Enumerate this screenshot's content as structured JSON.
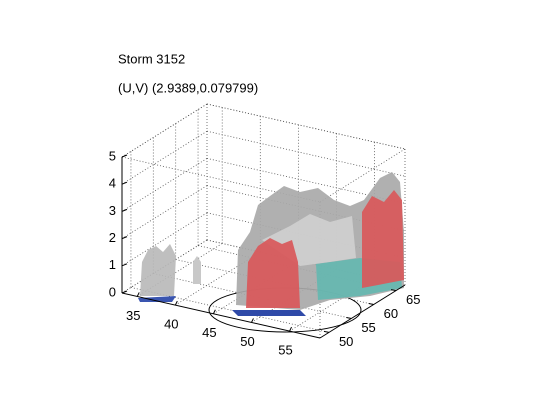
{
  "chart_data": {
    "type": "isosurface3d",
    "title": "Storm 3152",
    "subtitle": "(U,V) (2.9389,0.079799)",
    "xlim": [
      33,
      59
    ],
    "ylim": [
      48,
      67
    ],
    "zlim": [
      0,
      5
    ],
    "xticks": [
      35,
      40,
      45,
      50,
      55
    ],
    "yticks": [
      50,
      55,
      60,
      65
    ],
    "zticks": [
      0,
      1,
      2,
      3,
      4,
      5
    ],
    "grid": true
  }
}
